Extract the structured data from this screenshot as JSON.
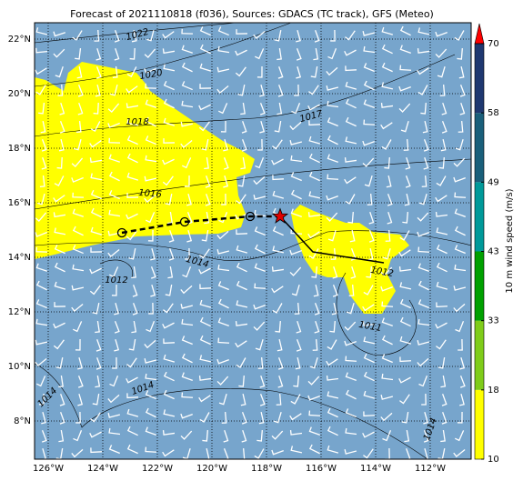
{
  "chart_data": {
    "type": "map",
    "title": "Forecast of 2021110818 (f036), Sources: GDACS (TC track), GFS (Meteo)",
    "xlim": [
      -126.5,
      -110.5
    ],
    "ylim": [
      6.6,
      22.6
    ],
    "xticks": [
      {
        "value": -126,
        "label": "126°W"
      },
      {
        "value": -124,
        "label": "124°W"
      },
      {
        "value": -122,
        "label": "122°W"
      },
      {
        "value": -120,
        "label": "120°W"
      },
      {
        "value": -118,
        "label": "118°W"
      },
      {
        "value": -116,
        "label": "116°W"
      },
      {
        "value": -114,
        "label": "114°W"
      },
      {
        "value": -112,
        "label": "112°W"
      }
    ],
    "yticks": [
      {
        "value": 8,
        "label": "8°N"
      },
      {
        "value": 10,
        "label": "10°N"
      },
      {
        "value": 12,
        "label": "12°N"
      },
      {
        "value": 14,
        "label": "14°N"
      },
      {
        "value": 16,
        "label": "16°N"
      },
      {
        "value": 18,
        "label": "18°N"
      },
      {
        "value": 20,
        "label": "20°N"
      },
      {
        "value": 22,
        "label": "22°N"
      }
    ],
    "grid": true,
    "track": {
      "x": [
        -123.3,
        -121.0,
        -118.6,
        -117.5
      ],
      "y": [
        14.9,
        15.3,
        15.5,
        15.5
      ],
      "color": "#000000"
    },
    "forecast": {
      "x": [
        -117.5,
        -116.3,
        -113.7
      ],
      "y": [
        15.5,
        14.2,
        13.8
      ],
      "color": "#000000"
    },
    "contour_labels": [
      1022,
      1020,
      1018,
      1017,
      1016,
      1014,
      1012,
      1012,
      1011,
      1014,
      1014,
      1014
    ],
    "colorbar": {
      "label": "10 m wind speed (m/s)",
      "ticks": [
        10,
        18,
        33,
        43,
        49,
        58,
        70
      ],
      "colors": [
        "#ffff00",
        "#7fcc1a",
        "#00a000",
        "#009999",
        "#1a5f7a",
        "#1f3870"
      ],
      "extend_color": "#ff0000"
    }
  }
}
